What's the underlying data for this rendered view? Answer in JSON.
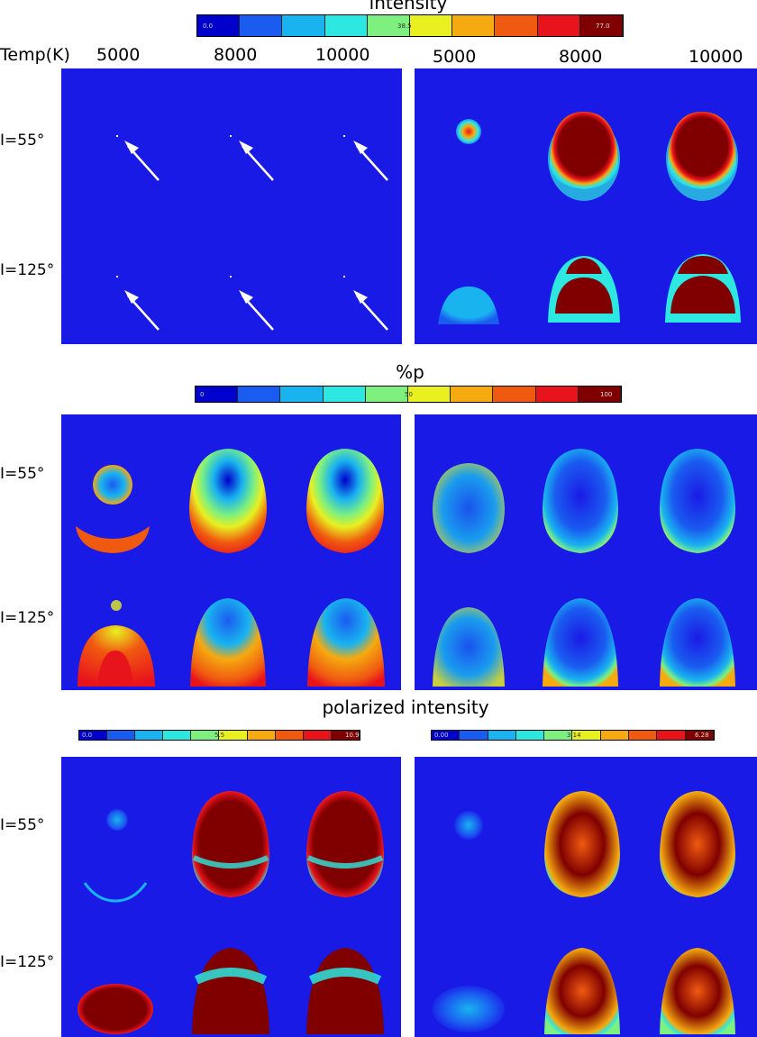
{
  "figure": {
    "temp_label": "Temp(K)",
    "temperatures": [
      "5000",
      "8000",
      "10000"
    ],
    "inclinations": [
      "I=55°",
      "I=125°"
    ],
    "colors": {
      "background": "#1a1ae6",
      "scale": [
        "#0000cc",
        "#1a5cf0",
        "#19b4f0",
        "#2de8e0",
        "#7df080",
        "#e8f020",
        "#f5aa10",
        "#f05a10",
        "#e8141c",
        "#800000"
      ]
    }
  },
  "sections": [
    {
      "title": "intensity",
      "colorbars": [
        {
          "labels": [
            "0.0",
            "38.5",
            "77.0"
          ]
        }
      ]
    },
    {
      "title": "%p",
      "colorbars": [
        {
          "labels": [
            "0",
            "50",
            "100"
          ]
        }
      ]
    },
    {
      "title": "polarized intensity",
      "colorbars": [
        {
          "labels": [
            "0.0",
            "5.5",
            "10.9"
          ]
        },
        {
          "labels": [
            "0.00",
            "3.14",
            "6.28"
          ]
        }
      ]
    }
  ],
  "chart_data": {
    "type": "heatmap",
    "title": "intensity / %p / polarized intensity",
    "xlabel": "Temp(K)",
    "x": [
      5000,
      8000,
      10000
    ],
    "rows": [
      "I=55°",
      "I=125°"
    ],
    "colorbar_ranges": {
      "intensity": [
        0.0,
        77.0
      ],
      "percent_p": [
        0,
        100
      ],
      "polarized_intensity_left": [
        0.0,
        10.9
      ],
      "polarized_intensity_right": [
        0.0,
        6.28
      ]
    }
  }
}
